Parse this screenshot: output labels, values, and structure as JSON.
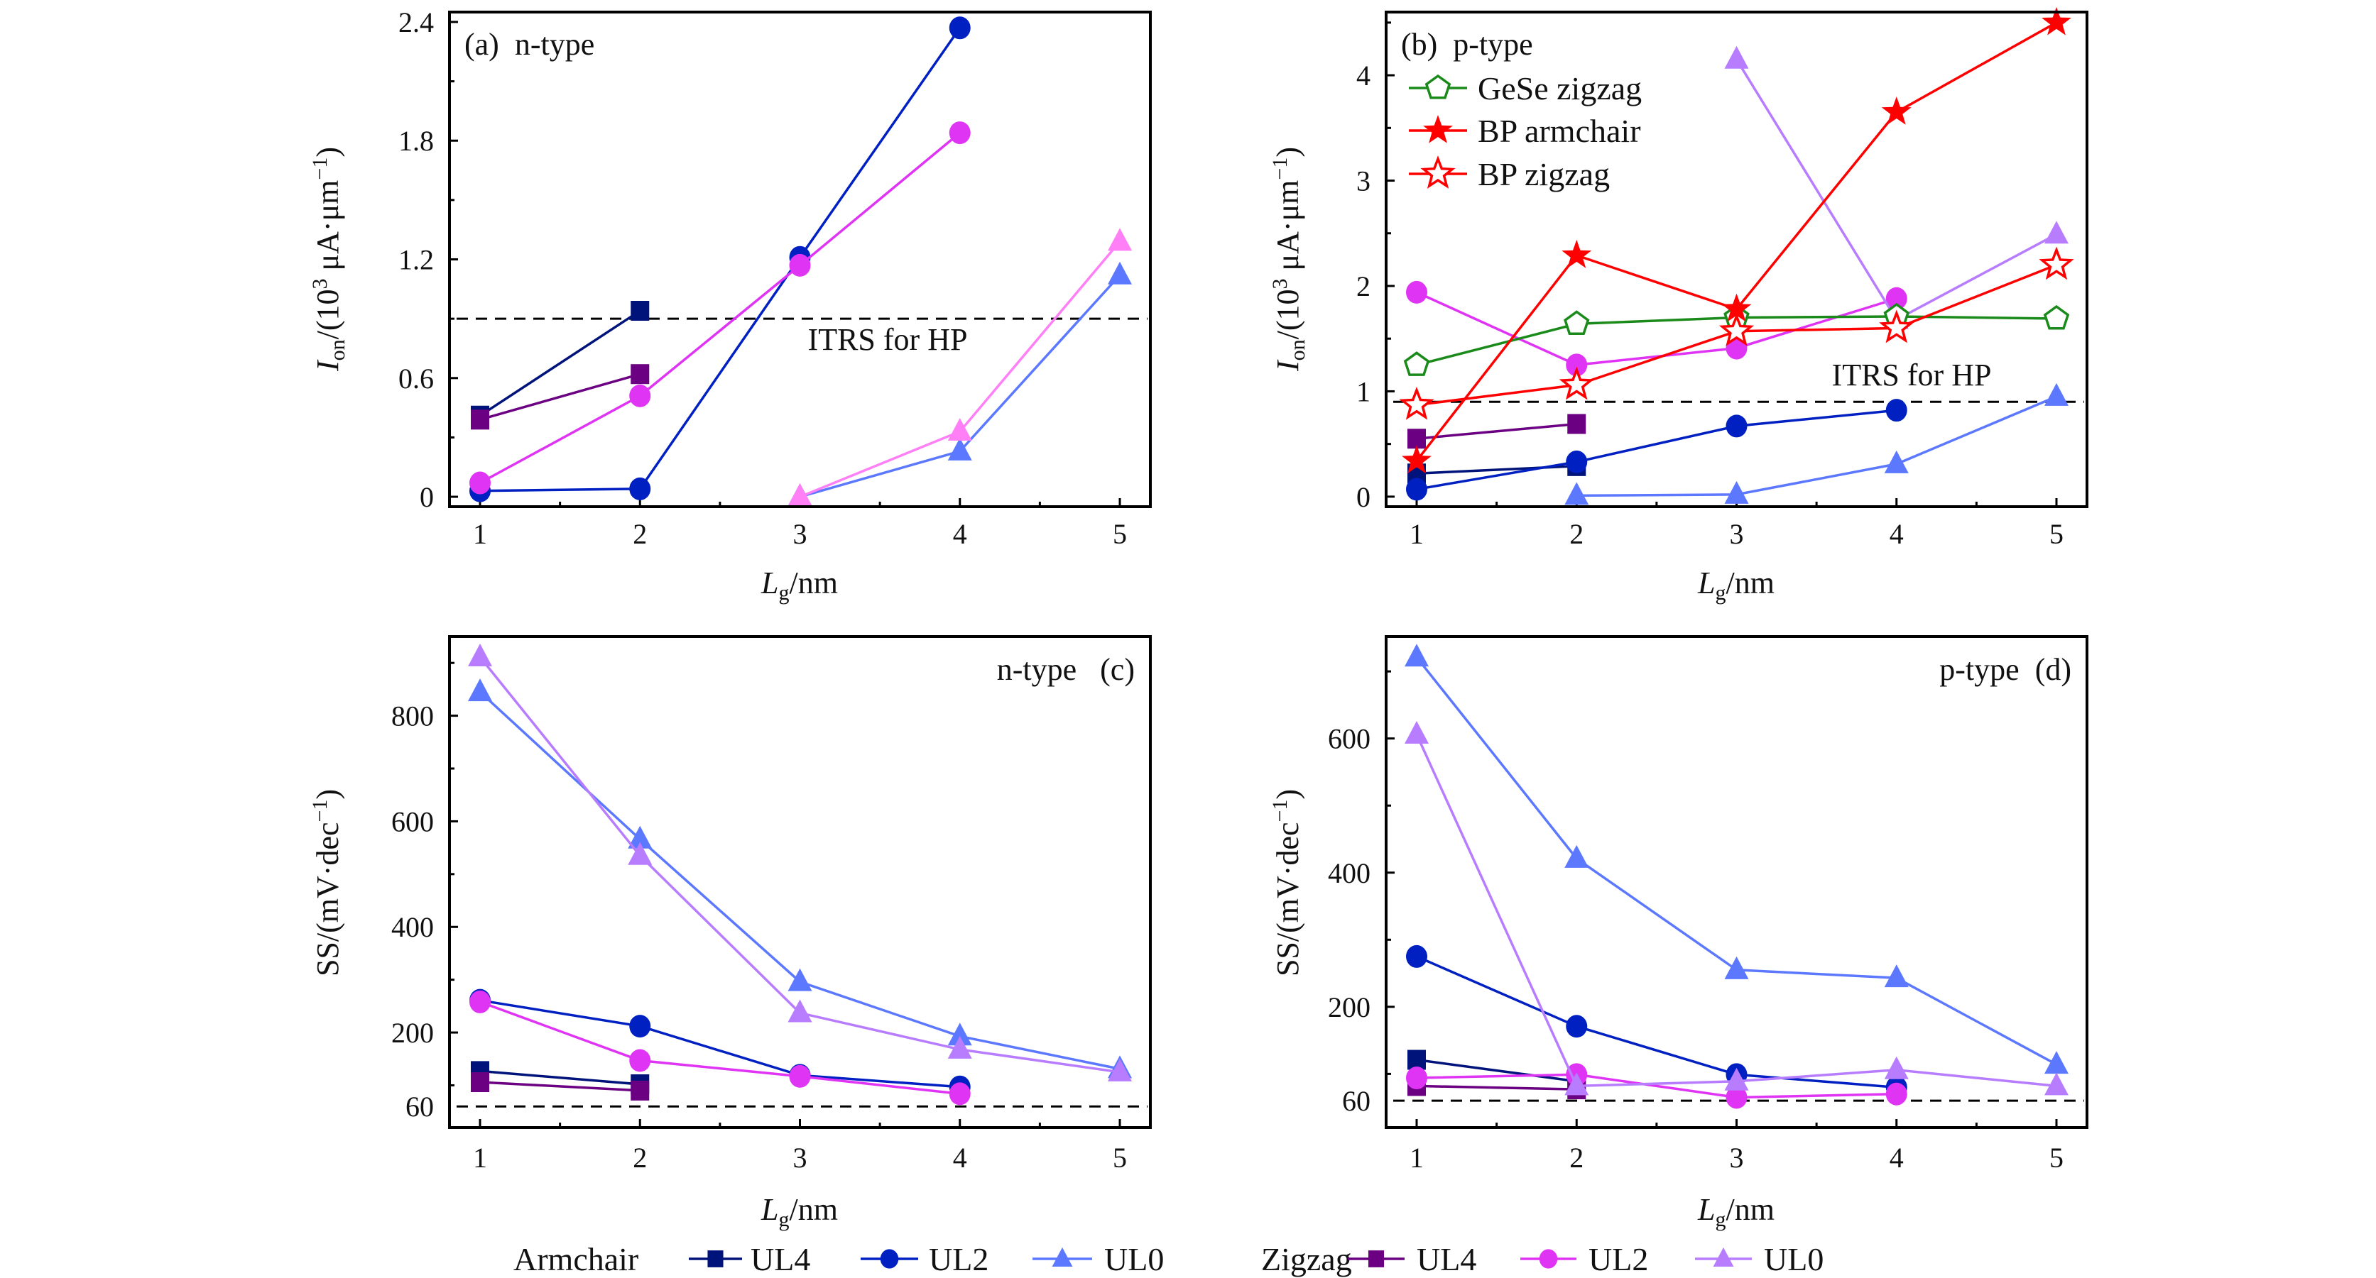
{
  "colors": {
    "armchair_ul4": "#00137a",
    "zigzag_ul4": "#6b0082",
    "armchair_ul2": "#0020c2",
    "zigzag_ul2": "#e034f5",
    "armchair_ul0": "#5c78ff",
    "zigzag_ul0": "#b87cff",
    "zigzag_ul0_panel_a": "#ff80f6",
    "gese": "#1a8a1a",
    "bp": "#ff0000"
  },
  "axis_text": {
    "xlabel": {
      "main": "L",
      "sub": "g",
      "rest": "/nm"
    },
    "ylabel_ion": {
      "main": "I",
      "sub": "on",
      "mid": "/(10",
      "sup": "3",
      "rest": " μA·μm",
      "sup2": "−1",
      "end": ")"
    },
    "ylabel_ss": {
      "main": "SS/(mV·dec",
      "sup": "−1",
      "end": ")"
    }
  },
  "legend_bottom": {
    "armchair_label": "Armchair",
    "zigzag_label": "Zigzag",
    "items": [
      "UL4",
      "UL2",
      "UL0"
    ]
  },
  "chart_data": [
    {
      "type": "line",
      "panel_label": "(a)  n-type",
      "ylabel": "Ion/(10^3 μA·μm^-1)",
      "xlabel": "Lg/nm",
      "x_ticks": [
        "1",
        "2",
        "3",
        "4",
        "5"
      ],
      "y_ticks": [
        "0",
        "0.6",
        "1.2",
        "1.8",
        "2.4"
      ],
      "y_tick_values": [
        0,
        0.6,
        1.2,
        1.8,
        2.4
      ],
      "y_minor": [
        0.3,
        0.9,
        1.5,
        2.1
      ],
      "ylim": [
        -0.05,
        2.45
      ],
      "xlim": [
        0.8,
        5.2
      ],
      "reference": {
        "label": "ITRS for HP",
        "value": 0.9
      },
      "series": [
        {
          "name": "Armchair UL4",
          "marker": "square",
          "color": "armchair_ul4",
          "x": [
            1,
            2
          ],
          "y": [
            0.41,
            0.94
          ]
        },
        {
          "name": "Zigzag UL4",
          "marker": "square",
          "color": "zigzag_ul4",
          "x": [
            1,
            2
          ],
          "y": [
            0.39,
            0.62
          ]
        },
        {
          "name": "Armchair UL2",
          "marker": "circle",
          "color": "armchair_ul2",
          "x": [
            1,
            2,
            3,
            4
          ],
          "y": [
            0.03,
            0.04,
            1.21,
            2.37
          ]
        },
        {
          "name": "Zigzag UL2",
          "marker": "circle",
          "color": "zigzag_ul2",
          "x": [
            1,
            2,
            3,
            4
          ],
          "y": [
            0.07,
            0.51,
            1.17,
            1.84
          ]
        },
        {
          "name": "Armchair UL0",
          "marker": "triangle",
          "color": "armchair_ul0",
          "x": [
            3,
            4,
            5
          ],
          "y": [
            0.0,
            0.23,
            1.12
          ]
        },
        {
          "name": "Zigzag UL0",
          "marker": "triangle",
          "color": "zigzag_ul0_panel_a",
          "x": [
            3,
            4,
            5
          ],
          "y": [
            0.0,
            0.33,
            1.29
          ]
        }
      ]
    },
    {
      "type": "line",
      "panel_label": "(b)  p-type",
      "ylabel": "Ion/(10^3 μA·μm^-1)",
      "xlabel": "Lg/nm",
      "x_ticks": [
        "1",
        "2",
        "3",
        "4",
        "5"
      ],
      "y_ticks": [
        "0",
        "1",
        "2",
        "3",
        "4"
      ],
      "y_tick_values": [
        0,
        1,
        2,
        3,
        4
      ],
      "y_minor": [
        0.5,
        1.5,
        2.5,
        3.5,
        4.5
      ],
      "ylim": [
        -0.095,
        4.6
      ],
      "xlim": [
        0.8,
        5.2
      ],
      "reference": {
        "label": "ITRS for HP",
        "value": 0.9
      },
      "legend": [
        "GeSe zigzag",
        "BP armchair",
        "BP zigzag"
      ],
      "series": [
        {
          "name": "Armchair UL4",
          "marker": "square",
          "color": "armchair_ul4",
          "x": [
            1,
            2
          ],
          "y": [
            0.22,
            0.29
          ]
        },
        {
          "name": "Zigzag UL4",
          "marker": "square",
          "color": "zigzag_ul4",
          "x": [
            1,
            2
          ],
          "y": [
            0.55,
            0.69
          ]
        },
        {
          "name": "Armchair UL2",
          "marker": "circle",
          "color": "armchair_ul2",
          "x": [
            1,
            2,
            3,
            4
          ],
          "y": [
            0.07,
            0.33,
            0.67,
            0.82
          ]
        },
        {
          "name": "Zigzag UL2",
          "marker": "circle",
          "color": "zigzag_ul2",
          "x": [
            1,
            2,
            3,
            4
          ],
          "y": [
            1.94,
            1.25,
            1.41,
            1.88
          ]
        },
        {
          "name": "Armchair UL0",
          "marker": "triangle",
          "color": "armchair_ul0",
          "x": [
            2,
            3,
            4,
            5
          ],
          "y": [
            0.01,
            0.02,
            0.31,
            0.95
          ]
        },
        {
          "name": "Zigzag UL0",
          "marker": "triangle",
          "color": "zigzag_ul0",
          "x": [
            3,
            4,
            5
          ],
          "y": [
            4.15,
            1.68,
            2.49
          ]
        },
        {
          "name": "GeSe zigzag",
          "marker": "pentagon",
          "color": "gese",
          "x": [
            1,
            2,
            3,
            4,
            5
          ],
          "y": [
            1.25,
            1.64,
            1.7,
            1.71,
            1.69
          ]
        },
        {
          "name": "BP armchair",
          "marker": "star",
          "color": "bp",
          "x": [
            1,
            2,
            3,
            4,
            5
          ],
          "y": [
            0.34,
            2.29,
            1.78,
            3.65,
            4.5
          ]
        },
        {
          "name": "BP zigzag",
          "marker": "star-open",
          "color": "bp",
          "x": [
            1,
            2,
            3,
            4,
            5
          ],
          "y": [
            0.87,
            1.06,
            1.57,
            1.6,
            2.2
          ]
        }
      ]
    },
    {
      "type": "line",
      "panel_label": "n-type   (c)",
      "ylabel": "SS/(mV·dec^-1)",
      "xlabel": "Lg/nm",
      "x_ticks": [
        "1",
        "2",
        "3",
        "4",
        "5"
      ],
      "y_ticks": [
        "60",
        "200",
        "400",
        "600",
        "800"
      ],
      "y_tick_values": [
        60,
        200,
        400,
        600,
        800
      ],
      "y_minor": [
        100,
        300,
        500,
        700,
        900
      ],
      "ylim": [
        20,
        950
      ],
      "xlim": [
        0.8,
        5.2
      ],
      "reference": {
        "value": 60
      },
      "series": [
        {
          "name": "Armchair UL4",
          "marker": "square",
          "color": "armchair_ul4",
          "x": [
            1,
            2
          ],
          "y": [
            127,
            102
          ]
        },
        {
          "name": "Zigzag UL4",
          "marker": "square",
          "color": "zigzag_ul4",
          "x": [
            1,
            2
          ],
          "y": [
            106,
            90
          ]
        },
        {
          "name": "Armchair UL2",
          "marker": "circle",
          "color": "armchair_ul2",
          "x": [
            1,
            2,
            3,
            4
          ],
          "y": [
            261,
            212,
            119,
            97
          ]
        },
        {
          "name": "Zigzag UL2",
          "marker": "circle",
          "color": "zigzag_ul2",
          "x": [
            1,
            2,
            3,
            4
          ],
          "y": [
            258,
            147,
            117,
            84
          ]
        },
        {
          "name": "Armchair UL0",
          "marker": "triangle",
          "color": "armchair_ul0",
          "x": [
            1,
            2,
            3,
            4,
            5
          ],
          "y": [
            845,
            566,
            296,
            193,
            131
          ]
        },
        {
          "name": "Zigzag UL0",
          "marker": "triangle",
          "color": "zigzag_ul0",
          "x": [
            1,
            2,
            3,
            4,
            5
          ],
          "y": [
            911,
            535,
            237,
            168,
            125
          ]
        }
      ]
    },
    {
      "type": "line",
      "panel_label": "p-type  (d)",
      "ylabel": "SS/(mV·dec^-1)",
      "xlabel": "Lg/nm",
      "x_ticks": [
        "1",
        "2",
        "3",
        "4",
        "5"
      ],
      "y_ticks": [
        "60",
        "200",
        "400",
        "600"
      ],
      "y_tick_values": [
        60,
        200,
        400,
        600
      ],
      "y_minor": [
        100,
        300,
        500,
        700
      ],
      "ylim": [
        20,
        752
      ],
      "xlim": [
        0.8,
        5.2
      ],
      "reference": {
        "value": 60
      },
      "series": [
        {
          "name": "Armchair UL4",
          "marker": "square",
          "color": "armchair_ul4",
          "x": [
            1,
            2
          ],
          "y": [
            121,
            89
          ]
        },
        {
          "name": "Zigzag UL4",
          "marker": "square",
          "color": "zigzag_ul4",
          "x": [
            1,
            2
          ],
          "y": [
            82,
            77
          ]
        },
        {
          "name": "Armchair UL2",
          "marker": "circle",
          "color": "armchair_ul2",
          "x": [
            1,
            2,
            3,
            4
          ],
          "y": [
            275,
            171,
            99,
            80
          ]
        },
        {
          "name": "Zigzag UL2",
          "marker": "circle",
          "color": "zigzag_ul2",
          "x": [
            1,
            2,
            3,
            4
          ],
          "y": [
            94,
            99,
            65,
            70
          ]
        },
        {
          "name": "Armchair UL0",
          "marker": "triangle",
          "color": "armchair_ul0",
          "x": [
            1,
            2,
            3,
            4,
            5
          ],
          "y": [
            721,
            421,
            255,
            243,
            114
          ]
        },
        {
          "name": "Zigzag UL0",
          "marker": "triangle",
          "color": "zigzag_ul0",
          "x": [
            1,
            2,
            3,
            4,
            5
          ],
          "y": [
            606,
            82,
            89,
            106,
            82
          ]
        }
      ]
    }
  ]
}
